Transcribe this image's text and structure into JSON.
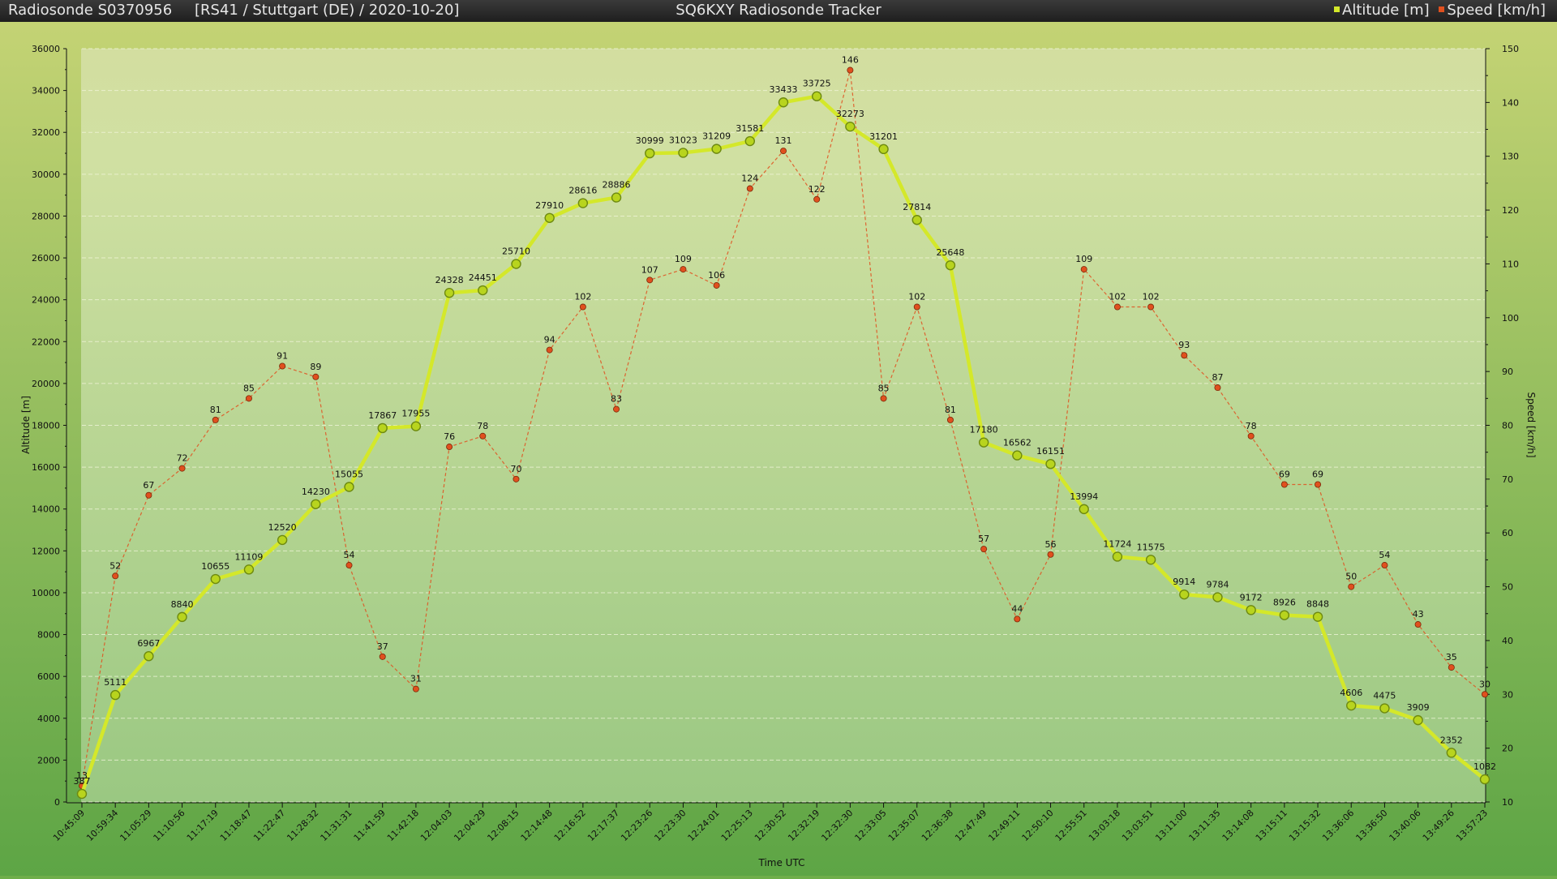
{
  "header": {
    "sonde": "Radiosonde S0370956",
    "info": "[RS41 / Stuttgart (DE) / 2020-10-20]",
    "title": "SQ6KXY Radiosonde Tracker",
    "legend_altitude": "Altitude [m]",
    "legend_speed": "Speed [km/h]"
  },
  "colors": {
    "altitude": "#d4e82a",
    "speed": "#e0501e",
    "header_bg": "#1e1e1e"
  },
  "chart_data": {
    "type": "line",
    "xlabel": "Time UTC",
    "y_left_label": "Altitude [m]",
    "y_right_label": "Speed [km/h]",
    "y_left_lim": [
      0,
      36000
    ],
    "y_right_lim": [
      10,
      150
    ],
    "y_left_ticks": [
      0,
      2000,
      4000,
      6000,
      8000,
      10000,
      12000,
      14000,
      16000,
      18000,
      20000,
      22000,
      24000,
      26000,
      28000,
      30000,
      32000,
      34000,
      36000
    ],
    "y_right_ticks": [
      10,
      20,
      30,
      40,
      50,
      60,
      70,
      80,
      90,
      100,
      110,
      120,
      130,
      140,
      150
    ],
    "grid": true,
    "legend_position": "top-right",
    "x": [
      "10:45:09",
      "10:59:34",
      "11:05:29",
      "11:10:56",
      "11:17:19",
      "11:18:47",
      "11:22:47",
      "11:28:32",
      "11:31:31",
      "11:41:59",
      "11:42:18",
      "12:04:03",
      "12:04:29",
      "12:08:15",
      "12:14:48",
      "12:16:52",
      "12:17:37",
      "12:23:26",
      "12:23:30",
      "12:24:01",
      "12:25:13",
      "12:30:52",
      "12:32:19",
      "12:32:30",
      "12:33:05",
      "12:35:07",
      "12:36:38",
      "12:47:49",
      "12:49:11",
      "12:50:10",
      "12:55:51",
      "13:03:18",
      "13:03:51",
      "13:11:00",
      "13:11:35",
      "13:14:08",
      "13:15:11",
      "13:15:32",
      "13:36:06",
      "13:36:50",
      "13:40:06",
      "13:49:26",
      "13:57:23"
    ],
    "series": [
      {
        "name": "Altitude [m]",
        "axis": "left",
        "values": [
          387,
          5111,
          6967,
          8840,
          10655,
          11109,
          12520,
          14230,
          15055,
          17867,
          17955,
          24328,
          24451,
          25710,
          27910,
          28616,
          28886,
          30999,
          31023,
          31209,
          31581,
          33433,
          33725,
          32273,
          31201,
          27814,
          25648,
          17180,
          16562,
          16151,
          13994,
          11724,
          11575,
          9914,
          9784,
          9172,
          8926,
          8848,
          4606,
          4475,
          3909,
          2352,
          1082
        ]
      },
      {
        "name": "Speed [km/h]",
        "axis": "right",
        "values": [
          13,
          52,
          67,
          72,
          81,
          85,
          91,
          89,
          54,
          37,
          31,
          76,
          78,
          70,
          94,
          102,
          83,
          107,
          109,
          106,
          124,
          131,
          122,
          146,
          85,
          102,
          81,
          57,
          44,
          56,
          109,
          102,
          102,
          93,
          87,
          78,
          69,
          69,
          50,
          54,
          43,
          35,
          30
        ]
      }
    ]
  }
}
